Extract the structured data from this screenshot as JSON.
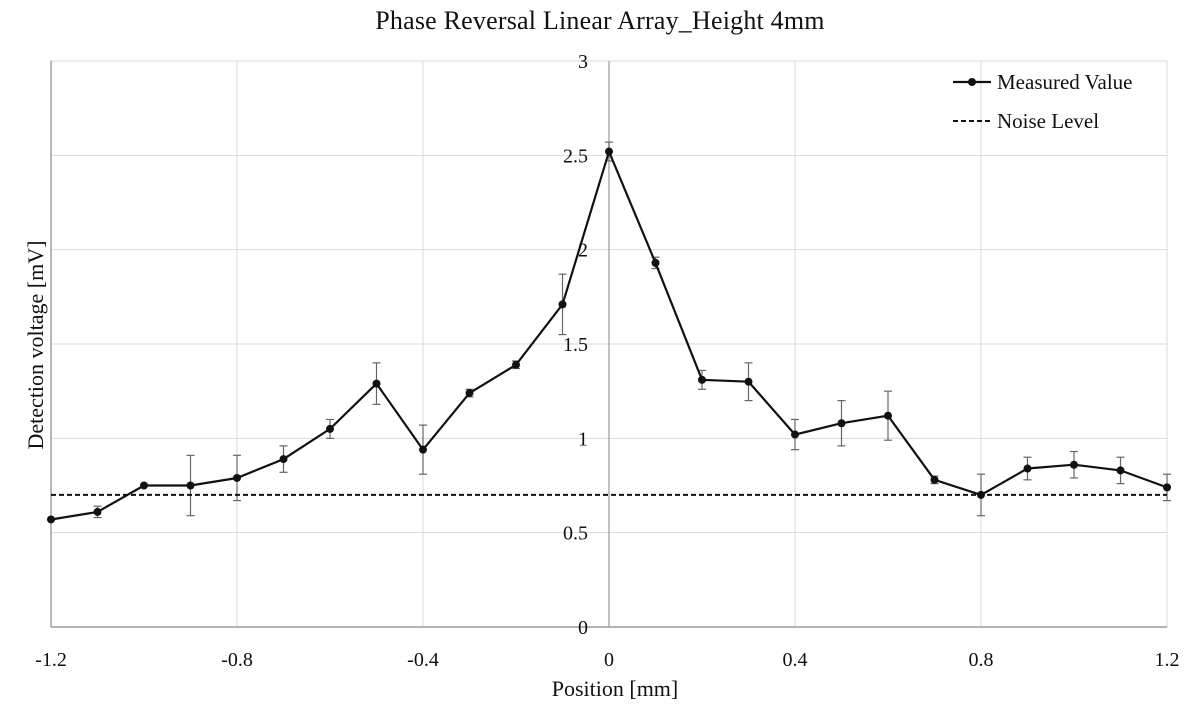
{
  "chart_data": {
    "type": "line",
    "title": "Phase Reversal Linear Array_Height  4mm",
    "xlabel": "Position  [mm]",
    "ylabel": "Detection  voltage  [mV]",
    "xlim": [
      -1.2,
      1.2
    ],
    "ylim": [
      0,
      3
    ],
    "x_ticks": [
      -1.2,
      -0.8,
      -0.4,
      0,
      0.4,
      0.8,
      1.2
    ],
    "x_tick_labels": [
      "-1.2",
      "-0.8",
      "-0.4",
      "0",
      "0.4",
      "0.8",
      "1.2"
    ],
    "y_ticks": [
      0,
      0.5,
      1,
      1.5,
      2,
      2.5,
      3
    ],
    "y_tick_labels": [
      "0",
      "0.5",
      "1",
      "1.5",
      "2",
      "2.5",
      "3"
    ],
    "grid": true,
    "legend_position": "top-right",
    "series": [
      {
        "name": "Measured Value",
        "style": "solid-with-markers",
        "color": "#111111",
        "x": [
          -1.2,
          -1.1,
          -1.0,
          -0.9,
          -0.8,
          -0.7,
          -0.6,
          -0.5,
          -0.4,
          -0.3,
          -0.2,
          -0.1,
          0.0,
          0.1,
          0.2,
          0.3,
          0.4,
          0.5,
          0.6,
          0.7,
          0.8,
          0.9,
          1.0,
          1.1,
          1.2
        ],
        "y": [
          0.57,
          0.61,
          0.75,
          0.75,
          0.79,
          0.89,
          1.05,
          1.29,
          0.94,
          1.24,
          1.39,
          1.71,
          2.52,
          1.93,
          1.31,
          1.3,
          1.02,
          1.08,
          1.12,
          0.78,
          0.7,
          0.84,
          0.86,
          0.83,
          0.74
        ],
        "error": [
          0.0,
          0.03,
          0.0,
          0.16,
          0.12,
          0.07,
          0.05,
          0.11,
          0.13,
          0.02,
          0.02,
          0.16,
          0.05,
          0.03,
          0.05,
          0.1,
          0.08,
          0.12,
          0.13,
          0.02,
          0.11,
          0.06,
          0.07,
          0.07,
          0.07
        ]
      },
      {
        "name": "Noise Level",
        "style": "dashed",
        "color": "#111111",
        "x": [
          -1.2,
          1.2
        ],
        "y": [
          0.7,
          0.7
        ]
      }
    ]
  }
}
